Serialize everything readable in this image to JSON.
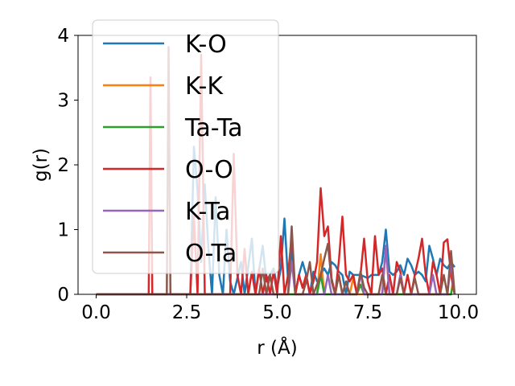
{
  "chart_data": {
    "type": "line",
    "title": "",
    "xlabel": "r (Å)",
    "ylabel": "g(r)",
    "xlim": [
      -0.5,
      10.5
    ],
    "ylim": [
      0,
      4
    ],
    "xticks": [
      0.0,
      2.5,
      5.0,
      7.5,
      10.0
    ],
    "xtick_labels": [
      "0.0",
      "2.5",
      "5.0",
      "7.5",
      "10.0"
    ],
    "yticks": [
      0,
      1,
      2,
      3,
      4
    ],
    "ytick_labels": [
      "0",
      "1",
      "2",
      "3",
      "4"
    ],
    "legend_position": "top-left",
    "grid": false,
    "series": [
      {
        "name": "K-O",
        "color": "#1f77b4",
        "points": [
          [
            0.0,
            0.0
          ],
          [
            2.6,
            0.0
          ],
          [
            2.7,
            2.28
          ],
          [
            2.8,
            1.6
          ],
          [
            2.9,
            0.5
          ],
          [
            3.0,
            1.7
          ],
          [
            3.1,
            0.7
          ],
          [
            3.2,
            0.0
          ],
          [
            3.3,
            1.5
          ],
          [
            3.4,
            0.3
          ],
          [
            3.5,
            0.0
          ],
          [
            3.6,
            1.0
          ],
          [
            3.7,
            0.2
          ],
          [
            3.8,
            0.0
          ],
          [
            4.0,
            0.5
          ],
          [
            4.1,
            0.0
          ],
          [
            4.3,
            0.86
          ],
          [
            4.4,
            0.0
          ],
          [
            4.6,
            0.75
          ],
          [
            4.7,
            0.2
          ],
          [
            4.9,
            0.4
          ],
          [
            5.0,
            0.1
          ],
          [
            5.1,
            0.4
          ],
          [
            5.2,
            1.17
          ],
          [
            5.3,
            0.2
          ],
          [
            5.4,
            0.7
          ],
          [
            5.5,
            0.0
          ],
          [
            5.6,
            0.3
          ],
          [
            5.7,
            0.5
          ],
          [
            5.8,
            0.3
          ],
          [
            5.9,
            0.0
          ],
          [
            6.0,
            0.35
          ],
          [
            6.1,
            0.2
          ],
          [
            6.2,
            0.3
          ],
          [
            6.3,
            0.4
          ],
          [
            6.4,
            0.3
          ],
          [
            6.5,
            0.5
          ],
          [
            6.6,
            0.45
          ],
          [
            6.7,
            0.35
          ],
          [
            6.8,
            0.3
          ],
          [
            6.9,
            0.0
          ],
          [
            7.0,
            0.35
          ],
          [
            7.1,
            0.3
          ],
          [
            7.3,
            0.3
          ],
          [
            7.5,
            0.25
          ],
          [
            7.6,
            0.3
          ],
          [
            7.8,
            0.3
          ],
          [
            7.9,
            0.5
          ],
          [
            8.0,
            1.0
          ],
          [
            8.1,
            0.35
          ],
          [
            8.2,
            0.3
          ],
          [
            8.3,
            0.35
          ],
          [
            8.4,
            0.45
          ],
          [
            8.5,
            0.3
          ],
          [
            8.6,
            0.55
          ],
          [
            8.7,
            0.45
          ],
          [
            8.8,
            0.3
          ],
          [
            8.9,
            0.35
          ],
          [
            9.0,
            0.3
          ],
          [
            9.1,
            0.2
          ],
          [
            9.2,
            0.75
          ],
          [
            9.3,
            0.55
          ],
          [
            9.4,
            0.3
          ],
          [
            9.5,
            0.55
          ],
          [
            9.6,
            0.45
          ],
          [
            9.7,
            0.4
          ],
          [
            9.8,
            0.5
          ],
          [
            9.9,
            0.42
          ]
        ]
      },
      {
        "name": "K-K",
        "color": "#ff7f0e",
        "points": [
          [
            0.0,
            0.0
          ],
          [
            6.1,
            0.0
          ],
          [
            6.2,
            0.62
          ],
          [
            6.3,
            0.0
          ],
          [
            6.6,
            0.0
          ],
          [
            6.7,
            0.3
          ],
          [
            6.8,
            0.0
          ],
          [
            7.0,
            0.0
          ],
          [
            7.1,
            0.25
          ],
          [
            7.2,
            0.0
          ],
          [
            7.9,
            0.0
          ],
          [
            8.0,
            0.72
          ],
          [
            8.1,
            0.0
          ],
          [
            9.8,
            0.0
          ],
          [
            9.85,
            0.2
          ],
          [
            9.9,
            0.0
          ]
        ]
      },
      {
        "name": "Ta-Ta",
        "color": "#2ca02c",
        "points": [
          [
            0.0,
            0.0
          ],
          [
            6.1,
            0.0
          ],
          [
            6.2,
            0.3
          ],
          [
            6.3,
            0.0
          ],
          [
            7.2,
            0.0
          ],
          [
            7.3,
            0.15
          ],
          [
            7.4,
            0.0
          ],
          [
            9.8,
            0.0
          ],
          [
            9.85,
            0.15
          ],
          [
            9.9,
            0.0
          ]
        ]
      },
      {
        "name": "O-O",
        "color": "#d62728",
        "points": [
          [
            0.0,
            0.0
          ],
          [
            1.45,
            0.0
          ],
          [
            1.5,
            3.35
          ],
          [
            1.55,
            0.0
          ],
          [
            2.0,
            0.0
          ],
          [
            2.1,
            0.0
          ],
          [
            2.6,
            0.0
          ],
          [
            2.7,
            1.2
          ],
          [
            2.8,
            0.0
          ],
          [
            2.9,
            3.7
          ],
          [
            3.0,
            0.0
          ],
          [
            3.7,
            0.0
          ],
          [
            3.8,
            2.17
          ],
          [
            3.9,
            0.3
          ],
          [
            4.0,
            0.0
          ],
          [
            4.1,
            0.7
          ],
          [
            4.2,
            0.0
          ],
          [
            4.3,
            0.35
          ],
          [
            4.4,
            0.0
          ],
          [
            4.5,
            0.4
          ],
          [
            4.6,
            0.0
          ],
          [
            4.7,
            0.3
          ],
          [
            4.8,
            0.0
          ],
          [
            4.9,
            0.35
          ],
          [
            5.0,
            0.0
          ],
          [
            5.1,
            0.9
          ],
          [
            5.2,
            0.0
          ],
          [
            5.3,
            0.3
          ],
          [
            5.4,
            0.9
          ],
          [
            5.5,
            0.0
          ],
          [
            5.6,
            0.3
          ],
          [
            5.7,
            0.1
          ],
          [
            5.8,
            0.3
          ],
          [
            5.9,
            0.0
          ],
          [
            6.0,
            0.2
          ],
          [
            6.1,
            0.5
          ],
          [
            6.2,
            1.64
          ],
          [
            6.3,
            0.9
          ],
          [
            6.4,
            1.05
          ],
          [
            6.5,
            0.25
          ],
          [
            6.6,
            0.0
          ],
          [
            6.7,
            0.5
          ],
          [
            6.8,
            1.2
          ],
          [
            6.9,
            0.3
          ],
          [
            7.0,
            0.2
          ],
          [
            7.1,
            0.3
          ],
          [
            7.2,
            0.0
          ],
          [
            7.3,
            0.3
          ],
          [
            7.4,
            0.86
          ],
          [
            7.5,
            0.2
          ],
          [
            7.6,
            0.0
          ],
          [
            7.7,
            0.9
          ],
          [
            7.8,
            0.3
          ],
          [
            7.9,
            0.4
          ],
          [
            8.0,
            0.0
          ],
          [
            8.1,
            0.3
          ],
          [
            8.2,
            0.0
          ],
          [
            8.3,
            0.5
          ],
          [
            8.4,
            0.35
          ],
          [
            8.5,
            0.0
          ],
          [
            8.6,
            0.3
          ],
          [
            8.7,
            0.0
          ],
          [
            8.8,
            0.3
          ],
          [
            8.9,
            0.55
          ],
          [
            9.0,
            0.86
          ],
          [
            9.1,
            0.3
          ],
          [
            9.2,
            0.0
          ],
          [
            9.3,
            0.5
          ],
          [
            9.4,
            0.3
          ],
          [
            9.5,
            0.0
          ],
          [
            9.6,
            0.8
          ],
          [
            9.7,
            0.85
          ],
          [
            9.8,
            0.3
          ],
          [
            9.9,
            0.0
          ]
        ]
      },
      {
        "name": "K-Ta",
        "color": "#9467bd",
        "points": [
          [
            0.0,
            0.0
          ],
          [
            5.3,
            0.0
          ],
          [
            5.4,
            0.5
          ],
          [
            5.5,
            0.0
          ],
          [
            6.3,
            0.0
          ],
          [
            6.4,
            0.3
          ],
          [
            6.5,
            0.0
          ],
          [
            7.2,
            0.0
          ],
          [
            7.3,
            0.35
          ],
          [
            7.4,
            0.0
          ],
          [
            7.9,
            0.0
          ],
          [
            8.0,
            0.75
          ],
          [
            8.1,
            0.0
          ],
          [
            8.3,
            0.0
          ],
          [
            8.4,
            0.3
          ],
          [
            8.5,
            0.0
          ],
          [
            9.2,
            0.0
          ],
          [
            9.3,
            0.3
          ],
          [
            9.4,
            0.0
          ],
          [
            9.7,
            0.0
          ],
          [
            9.8,
            0.5
          ],
          [
            9.9,
            0.0
          ]
        ]
      },
      {
        "name": "O-Ta",
        "color": "#8c564b",
        "points": [
          [
            0.0,
            0.0
          ],
          [
            1.95,
            0.0
          ],
          [
            2.0,
            3.82
          ],
          [
            2.05,
            0.0
          ],
          [
            4.5,
            0.0
          ],
          [
            4.6,
            0.4
          ],
          [
            4.7,
            0.0
          ],
          [
            4.8,
            0.3
          ],
          [
            4.9,
            0.0
          ],
          [
            5.3,
            0.0
          ],
          [
            5.4,
            1.05
          ],
          [
            5.5,
            0.0
          ],
          [
            5.7,
            0.0
          ],
          [
            5.8,
            0.2
          ],
          [
            5.9,
            0.5
          ],
          [
            6.0,
            0.0
          ],
          [
            6.2,
            0.3
          ],
          [
            6.3,
            0.55
          ],
          [
            6.4,
            0.78
          ],
          [
            6.5,
            0.2
          ],
          [
            6.6,
            0.0
          ],
          [
            6.7,
            0.3
          ],
          [
            6.8,
            0.0
          ],
          [
            6.9,
            0.2
          ],
          [
            7.0,
            0.0
          ],
          [
            7.2,
            0.0
          ],
          [
            7.3,
            0.35
          ],
          [
            7.4,
            0.1
          ],
          [
            7.5,
            0.0
          ],
          [
            7.8,
            0.0
          ],
          [
            7.9,
            0.3
          ],
          [
            8.0,
            0.0
          ],
          [
            8.3,
            0.0
          ],
          [
            8.4,
            0.25
          ],
          [
            8.5,
            0.0
          ],
          [
            8.7,
            0.0
          ],
          [
            8.8,
            0.25
          ],
          [
            8.9,
            0.0
          ],
          [
            9.5,
            0.0
          ],
          [
            9.6,
            0.3
          ],
          [
            9.7,
            0.0
          ],
          [
            9.8,
            0.67
          ],
          [
            9.9,
            0.0
          ]
        ]
      }
    ]
  }
}
